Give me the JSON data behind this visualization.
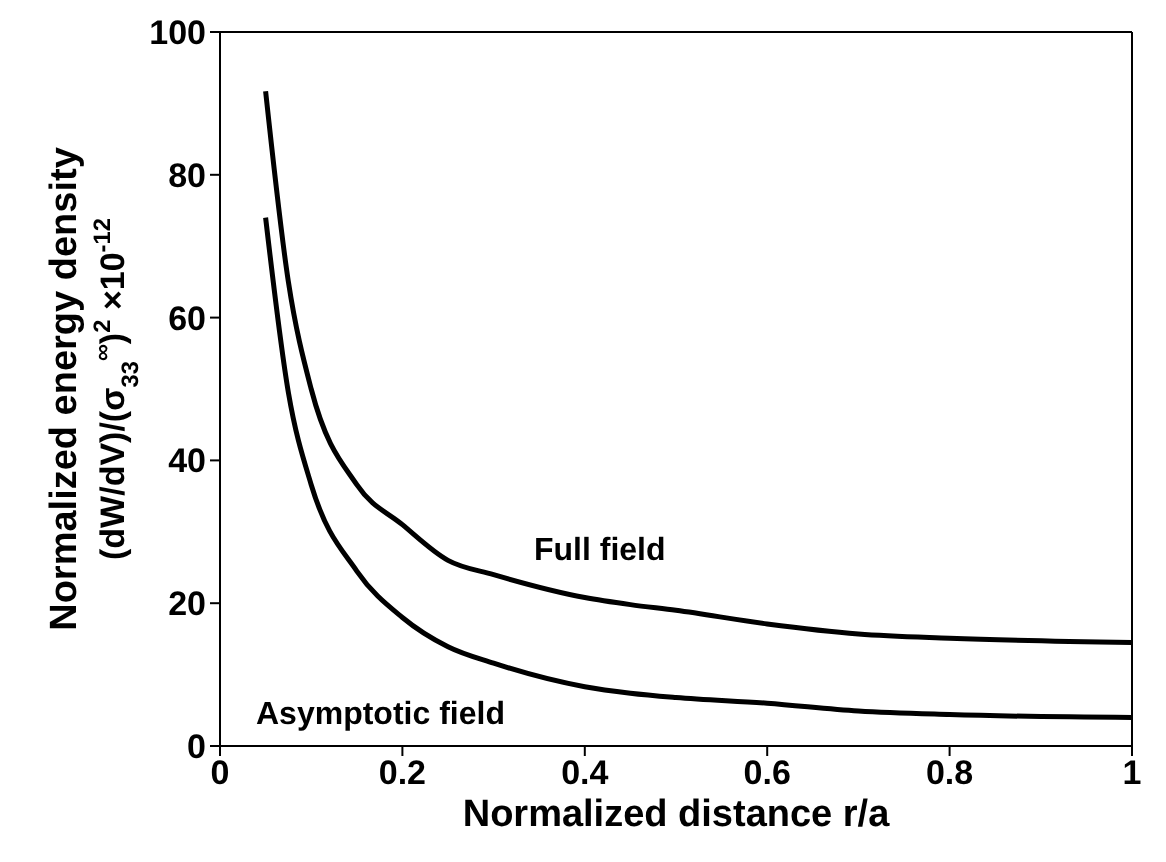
{
  "chart_data": {
    "type": "line",
    "xlabel": "Normalized distance r/a",
    "ylabel": "Normalized energy density\n(dW/dV)/(σ$_{33}$$^{∞}$)$^{2}$ ×10$^{-12}$",
    "x": [
      0.05,
      0.075,
      0.1,
      0.15,
      0.2,
      0.25,
      0.3,
      0.4,
      0.45,
      0.5,
      0.6,
      0.7,
      0.8,
      1
    ],
    "series": [
      {
        "color": "#000000",
        "values": [
          91.7,
          65,
          50,
          36.6,
          31,
          26,
          24,
          20.8,
          19.8,
          19,
          17.1,
          15.7,
          15.1,
          14.5
        ]
      },
      {
        "color": "#000000",
        "values": [
          74,
          49.5,
          36.6,
          24.5,
          18,
          13.9,
          11.6,
          8.3,
          7.4,
          6.8,
          6.0,
          4.9,
          4.4,
          4.0
        ]
      }
    ],
    "annotations": [
      "Full field",
      "Asymptotic field"
    ],
    "xlim": [
      0,
      1
    ],
    "xticks": [
      0,
      0.2,
      0.4,
      0.6,
      0.8,
      1
    ],
    "ylim": [
      0,
      100
    ],
    "yticks": [
      0,
      20,
      40,
      60,
      80,
      100
    ],
    "grid": false,
    "legend": false,
    "marker": "none",
    "line_style": "solid"
  }
}
